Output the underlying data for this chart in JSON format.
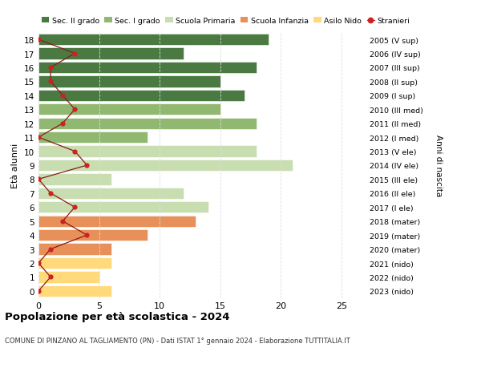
{
  "ages": [
    0,
    1,
    2,
    3,
    4,
    5,
    6,
    7,
    8,
    9,
    10,
    11,
    12,
    13,
    14,
    15,
    16,
    17,
    18
  ],
  "anni_nascita": [
    "2023 (nido)",
    "2022 (nido)",
    "2021 (nido)",
    "2020 (mater)",
    "2019 (mater)",
    "2018 (mater)",
    "2017 (I ele)",
    "2016 (II ele)",
    "2015 (III ele)",
    "2014 (IV ele)",
    "2013 (V ele)",
    "2012 (I med)",
    "2011 (II med)",
    "2010 (III med)",
    "2009 (I sup)",
    "2008 (II sup)",
    "2007 (III sup)",
    "2006 (IV sup)",
    "2005 (V sup)"
  ],
  "bar_values": [
    6,
    5,
    6,
    6,
    9,
    13,
    14,
    12,
    6,
    21,
    18,
    9,
    18,
    15,
    17,
    15,
    18,
    12,
    19
  ],
  "bar_colors": [
    "#FFD97A",
    "#FFD97A",
    "#FFD97A",
    "#E8905A",
    "#E8905A",
    "#E8905A",
    "#C8DDB0",
    "#C8DDB0",
    "#C8DDB0",
    "#C8DDB0",
    "#C8DDB0",
    "#90B870",
    "#90B870",
    "#90B870",
    "#4A7A42",
    "#4A7A42",
    "#4A7A42",
    "#4A7A42",
    "#4A7A42"
  ],
  "stranieri": [
    0,
    1,
    0,
    1,
    4,
    2,
    3,
    1,
    0,
    4,
    3,
    0,
    2,
    3,
    2,
    1,
    1,
    3,
    0
  ],
  "legend_labels": [
    "Sec. II grado",
    "Sec. I grado",
    "Scuola Primaria",
    "Scuola Infanzia",
    "Asilo Nido",
    "Stranieri"
  ],
  "legend_colors": [
    "#4A7A42",
    "#90B870",
    "#C8DDB0",
    "#E8905A",
    "#FFD97A",
    "#AA2222"
  ],
  "title": "Popolazione per età scolastica - 2024",
  "subtitle": "COMUNE DI PINZANO AL TAGLIAMENTO (PN) - Dati ISTAT 1° gennaio 2024 - Elaborazione TUTTITALIA.IT",
  "ylabel": "Età alunni",
  "ylabel_right": "Anni di nascita",
  "xlim": [
    0,
    27
  ],
  "background_color": "#FFFFFF",
  "bar_height": 0.82,
  "grid_color": "#DDDDDD",
  "stranieri_line_color": "#8B1A1A",
  "stranieri_dot_color": "#CC2222"
}
